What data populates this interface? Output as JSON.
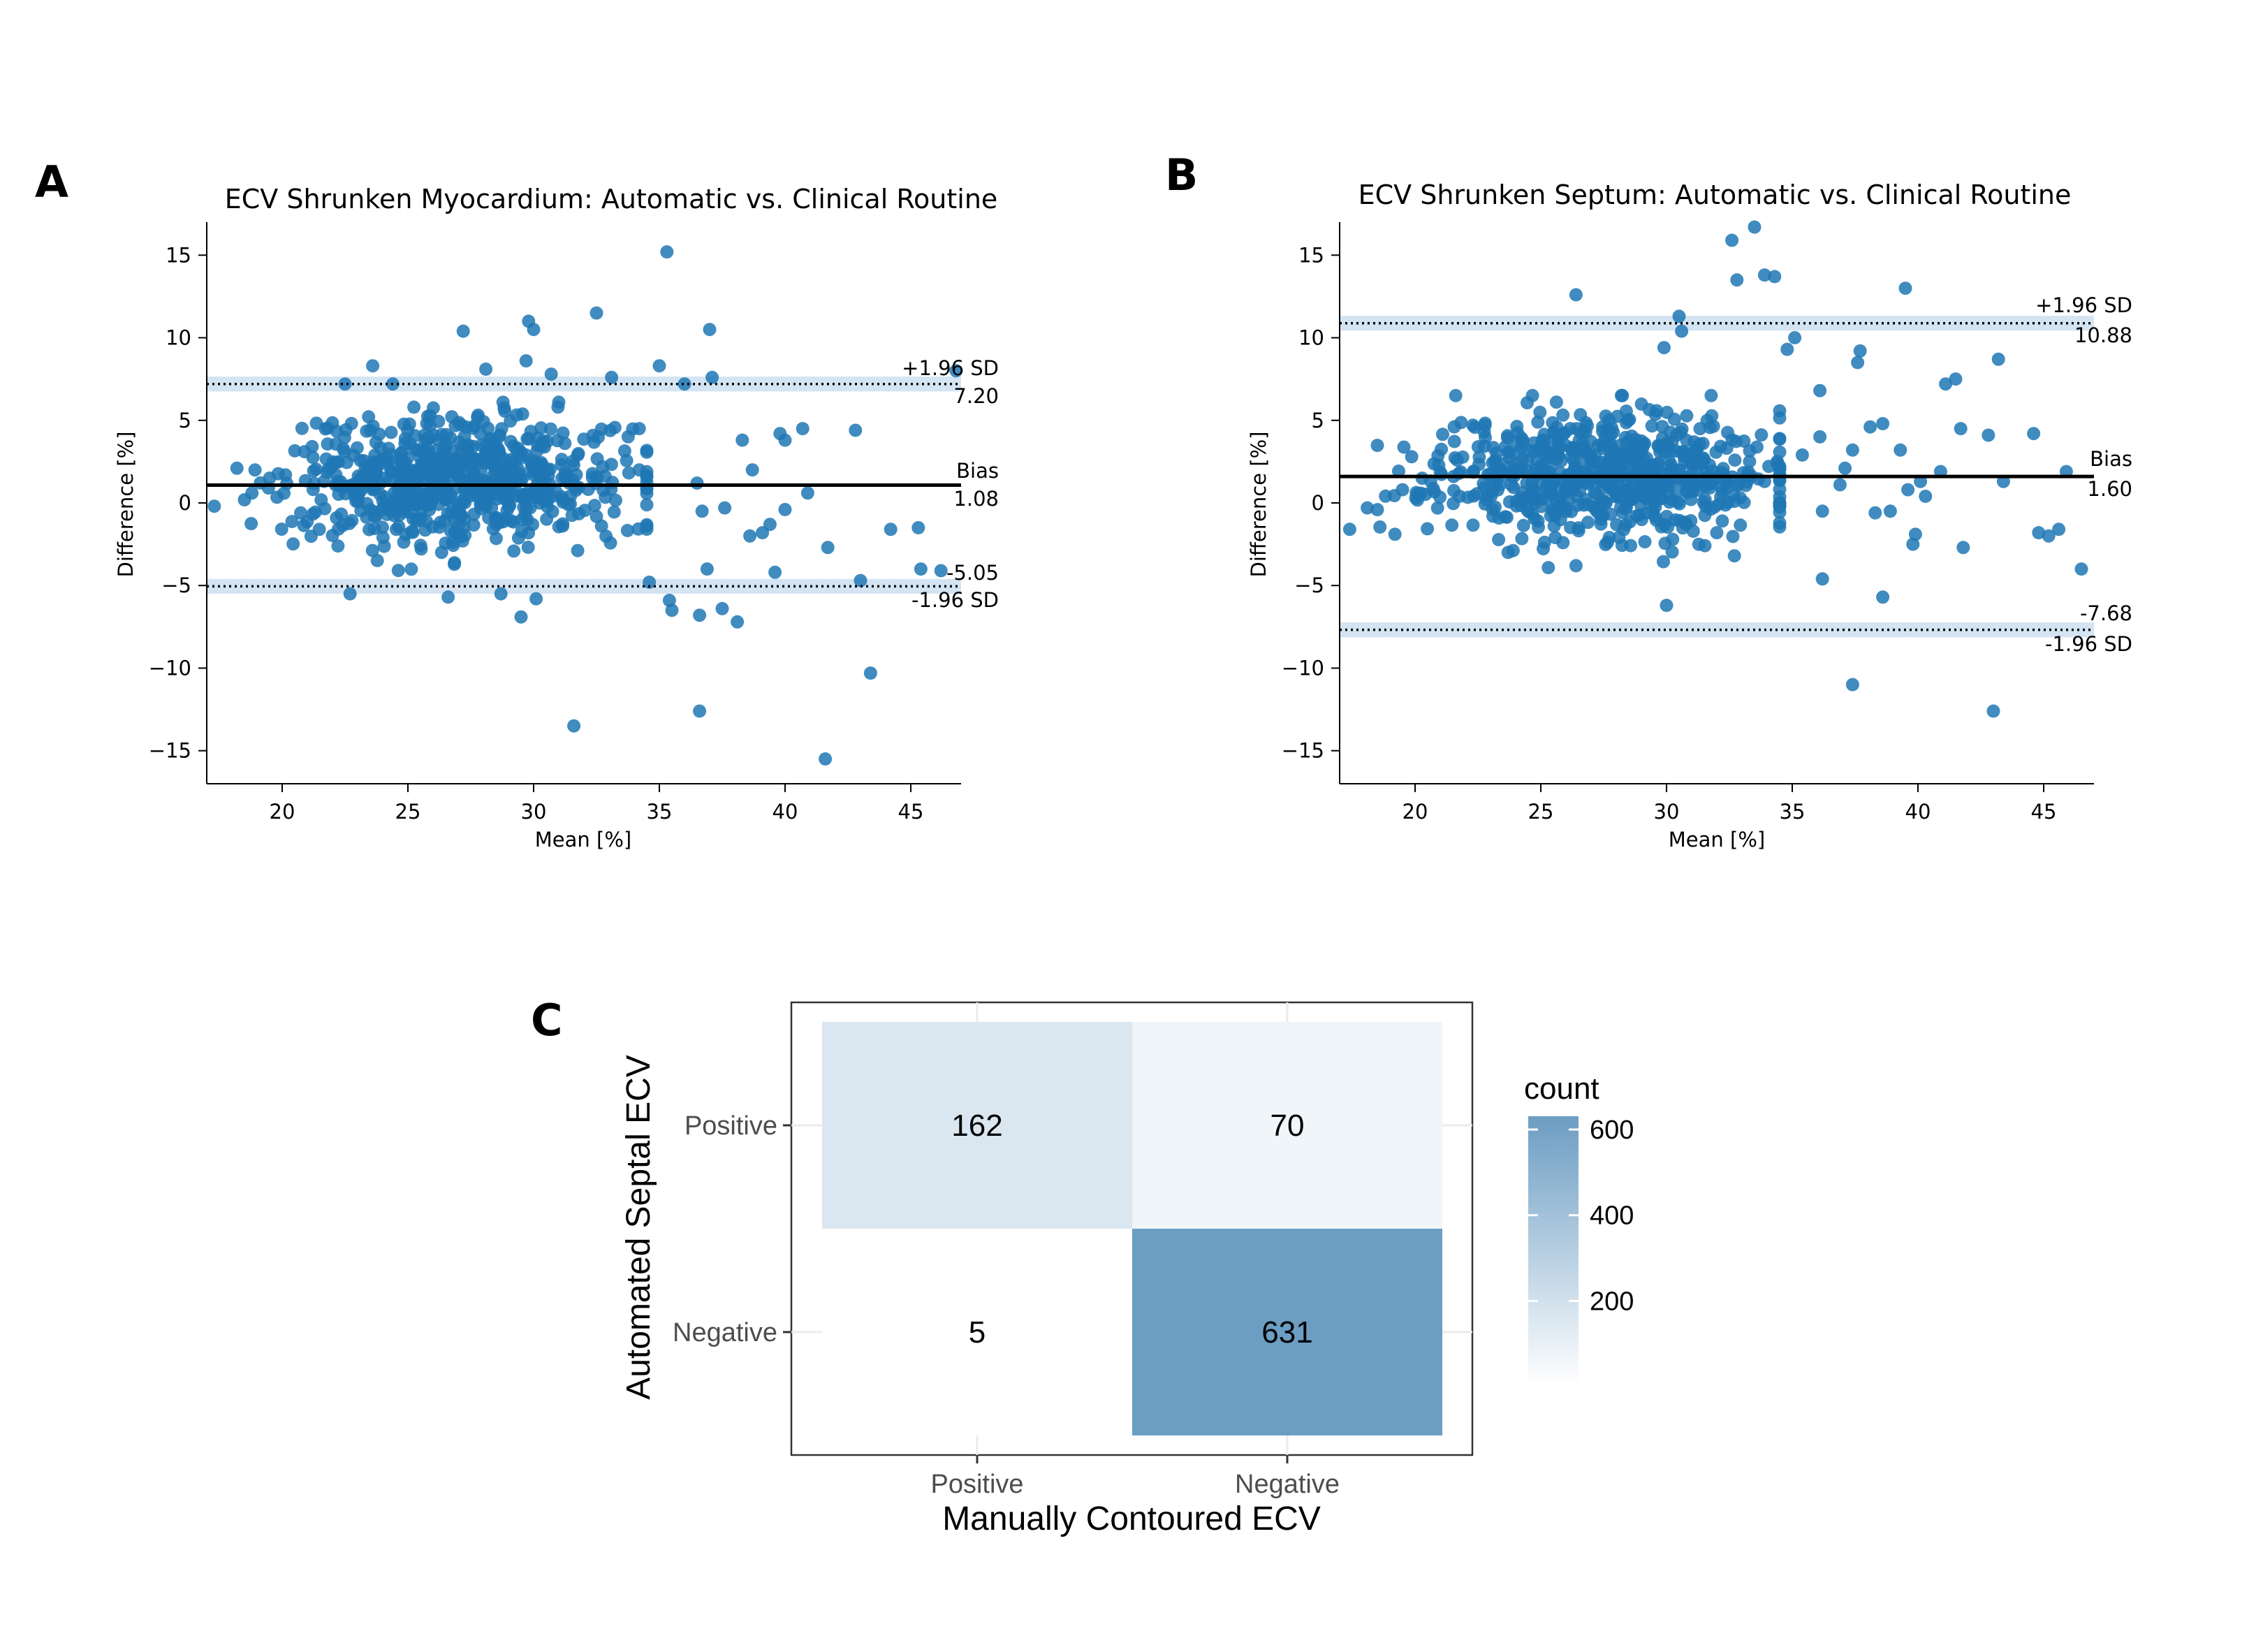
{
  "panels": {
    "a": "A",
    "b": "B",
    "c": "C"
  },
  "colors": {
    "points": "#1f77b4",
    "limit_band": "#c6dbef",
    "heat_high": "#6c9dc3",
    "heat_low": "#ffffff"
  },
  "chart_data": [
    {
      "type": "scatter",
      "title": "ECV Shrunken Myocardium: Automatic vs. Clinical Routine",
      "xlabel": "Mean [%]",
      "ylabel": "Difference [%]",
      "xlim": [
        17,
        47
      ],
      "ylim": [
        -17,
        17
      ],
      "xticks": [
        20,
        25,
        30,
        35,
        40,
        45
      ],
      "yticks": [
        -15,
        -10,
        -5,
        0,
        5,
        10,
        15
      ],
      "grid": false,
      "bias": 1.08,
      "bias_label": "Bias",
      "bias_value": "1.08",
      "upper_loa": 7.2,
      "upper_label": "+1.96 SD",
      "upper_value": "7.20",
      "lower_loa": -5.05,
      "lower_label": "-1.96 SD",
      "lower_value": "-5.05",
      "outliers": [
        [
          17.3,
          -0.2
        ],
        [
          35.3,
          15.2
        ],
        [
          31.6,
          -13.5
        ],
        [
          36.6,
          -12.6
        ],
        [
          41.6,
          -15.5
        ],
        [
          43.4,
          -10.3
        ],
        [
          32.5,
          11.5
        ],
        [
          29.8,
          11.0
        ],
        [
          30.0,
          10.5
        ],
        [
          37.0,
          10.5
        ],
        [
          27.2,
          10.4
        ],
        [
          29.7,
          8.6
        ],
        [
          30.7,
          7.8
        ],
        [
          35.0,
          8.3
        ],
        [
          28.1,
          8.1
        ],
        [
          36.0,
          7.2
        ],
        [
          37.1,
          7.6
        ],
        [
          23.6,
          8.3
        ],
        [
          42.8,
          4.4
        ],
        [
          40.7,
          4.5
        ],
        [
          39.8,
          4.2
        ],
        [
          45.3,
          -1.5
        ],
        [
          45.4,
          -4.0
        ],
        [
          46.2,
          -4.1
        ],
        [
          46.8,
          8.0
        ],
        [
          43.0,
          -4.7
        ],
        [
          44.2,
          -1.6
        ],
        [
          41.7,
          -2.7
        ],
        [
          40.9,
          0.6
        ],
        [
          40.0,
          3.8
        ],
        [
          38.7,
          2.0
        ],
        [
          38.1,
          -7.2
        ],
        [
          37.5,
          -6.4
        ],
        [
          36.6,
          -6.8
        ],
        [
          35.5,
          -6.5
        ],
        [
          35.4,
          -5.9
        ],
        [
          34.6,
          -4.8
        ],
        [
          36.9,
          -4.0
        ],
        [
          38.6,
          -2.0
        ],
        [
          39.4,
          -1.3
        ],
        [
          39.6,
          -4.2
        ],
        [
          40.0,
          -0.4
        ],
        [
          37.6,
          -0.3
        ],
        [
          38.3,
          3.8
        ],
        [
          36.5,
          1.2
        ],
        [
          29.5,
          -6.9
        ],
        [
          30.1,
          -5.8
        ],
        [
          28.7,
          -5.5
        ],
        [
          26.6,
          -5.7
        ],
        [
          22.7,
          -5.5
        ],
        [
          22.5,
          7.2
        ],
        [
          24.4,
          7.2
        ],
        [
          18.2,
          2.1
        ],
        [
          18.8,
          0.6
        ],
        [
          19.5,
          1.5
        ],
        [
          33.1,
          7.6
        ],
        [
          34.2,
          4.5
        ],
        [
          31.0,
          6.1
        ],
        [
          36.7,
          -0.5
        ],
        [
          39.1,
          -1.8
        ]
      ],
      "cluster": {
        "center": [
          27.0,
          1.3
        ],
        "spread": [
          3.3,
          1.9
        ],
        "count": 700,
        "seed": 7
      }
    },
    {
      "type": "scatter",
      "title": "ECV Shrunken Septum: Automatic vs. Clinical Routine",
      "xlabel": "Mean [%]",
      "ylabel": "Difference [%]",
      "xlim": [
        17,
        47
      ],
      "ylim": [
        -17,
        17
      ],
      "xticks": [
        20,
        25,
        30,
        35,
        40,
        45
      ],
      "yticks": [
        -15,
        -10,
        -5,
        0,
        5,
        10,
        15
      ],
      "grid": false,
      "bias": 1.6,
      "bias_label": "Bias",
      "bias_value": "1.60",
      "upper_loa": 10.88,
      "upper_label": "+1.96 SD",
      "upper_value": "10.88",
      "lower_loa": -7.68,
      "lower_label": "-1.96 SD",
      "lower_value": "-7.68",
      "outliers": [
        [
          33.5,
          16.7
        ],
        [
          32.6,
          15.9
        ],
        [
          33.9,
          13.8
        ],
        [
          34.3,
          13.7
        ],
        [
          32.8,
          13.5
        ],
        [
          39.5,
          13.0
        ],
        [
          26.4,
          12.6
        ],
        [
          30.5,
          11.3
        ],
        [
          30.6,
          10.4
        ],
        [
          35.1,
          10.0
        ],
        [
          37.7,
          9.2
        ],
        [
          37.6,
          8.5
        ],
        [
          34.8,
          9.3
        ],
        [
          43.2,
          8.7
        ],
        [
          41.5,
          7.5
        ],
        [
          41.1,
          7.2
        ],
        [
          29.9,
          9.4
        ],
        [
          36.1,
          6.8
        ],
        [
          43.0,
          -12.6
        ],
        [
          37.4,
          -11.0
        ],
        [
          30.0,
          -6.2
        ],
        [
          38.6,
          -5.7
        ],
        [
          36.2,
          -4.6
        ],
        [
          17.4,
          -1.6
        ],
        [
          46.5,
          -4.0
        ],
        [
          45.6,
          -1.6
        ],
        [
          45.2,
          -2.0
        ],
        [
          44.8,
          -1.8
        ],
        [
          45.9,
          1.9
        ],
        [
          43.4,
          1.3
        ],
        [
          44.6,
          4.2
        ],
        [
          42.8,
          4.1
        ],
        [
          41.7,
          4.5
        ],
        [
          40.9,
          1.9
        ],
        [
          40.3,
          0.4
        ],
        [
          39.9,
          -1.9
        ],
        [
          39.6,
          0.8
        ],
        [
          38.6,
          4.8
        ],
        [
          38.1,
          4.6
        ],
        [
          37.4,
          3.2
        ],
        [
          36.9,
          1.1
        ],
        [
          36.1,
          4.0
        ],
        [
          35.4,
          2.9
        ],
        [
          34.4,
          2.4
        ],
        [
          33.9,
          1.3
        ],
        [
          41.8,
          -2.7
        ],
        [
          39.8,
          -2.5
        ],
        [
          39.3,
          3.2
        ],
        [
          38.9,
          -0.5
        ],
        [
          38.3,
          -0.6
        ],
        [
          37.1,
          2.1
        ],
        [
          36.2,
          -0.5
        ],
        [
          19.5,
          0.8
        ],
        [
          18.1,
          -0.3
        ],
        [
          19.2,
          -1.9
        ],
        [
          23.7,
          -3.0
        ],
        [
          26.4,
          -3.8
        ],
        [
          32.0,
          -1.8
        ],
        [
          32.7,
          -3.2
        ],
        [
          40.1,
          1.3
        ]
      ],
      "cluster": {
        "center": [
          27.5,
          1.8
        ],
        "spread": [
          3.3,
          1.9
        ],
        "count": 700,
        "seed": 11
      }
    },
    {
      "type": "heatmap",
      "xlabel": "Manually Contoured ECV",
      "ylabel": "Automated Septal ECV",
      "x_categories": [
        "Positive",
        "Negative"
      ],
      "y_categories": [
        "Positive",
        "Negative"
      ],
      "values": [
        [
          162,
          70
        ],
        [
          5,
          631
        ]
      ],
      "legend_title": "count",
      "legend_ticks": [
        200,
        400,
        600
      ],
      "color_range": [
        5,
        631
      ]
    }
  ]
}
